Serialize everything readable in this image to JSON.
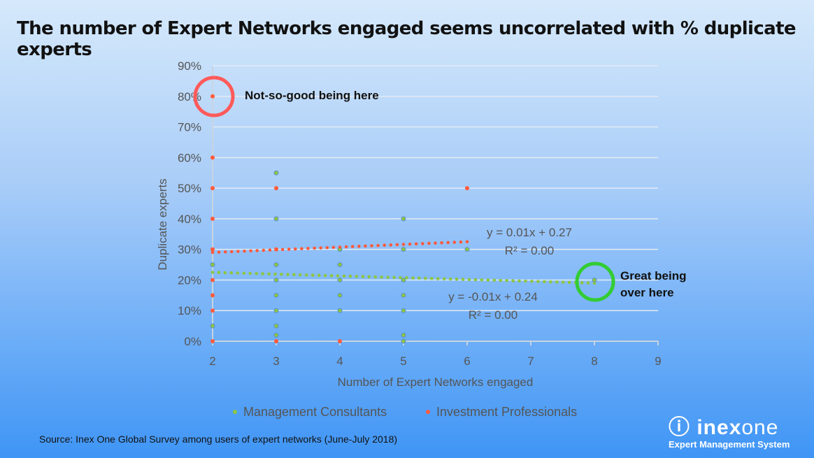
{
  "title": "The number of Expert Networks engaged seems uncorrelated with % duplicate experts",
  "source": "Source:  Inex One Global Survey among users of expert networks (June-July 2018)",
  "logo": {
    "brand_bold": "inex",
    "brand_light": "one",
    "tagline": "Expert Management System"
  },
  "chart_data": {
    "type": "scatter",
    "xlabel": "Number of Expert Networks engaged",
    "ylabel": "Duplicate experts",
    "xlim": [
      2,
      9
    ],
    "ylim": [
      0,
      0.9
    ],
    "xticks": [
      "2",
      "3",
      "4",
      "5",
      "6",
      "7",
      "8",
      "9"
    ],
    "yticks": [
      "0%",
      "10%",
      "20%",
      "30%",
      "40%",
      "50%",
      "60%",
      "70%",
      "80%",
      "90%"
    ],
    "grid": true,
    "legend": "bottom",
    "series": [
      {
        "name": "Management Consultants",
        "color": "#8dc63f",
        "points": [
          [
            2,
            0.25
          ],
          [
            2,
            0.05
          ],
          [
            3,
            0.55
          ],
          [
            3,
            0.4
          ],
          [
            3,
            0.25
          ],
          [
            3,
            0.2
          ],
          [
            3,
            0.15
          ],
          [
            3,
            0.1
          ],
          [
            3,
            0.05
          ],
          [
            3,
            0.02
          ],
          [
            4,
            0.3
          ],
          [
            4,
            0.25
          ],
          [
            4,
            0.2
          ],
          [
            4,
            0.15
          ],
          [
            4,
            0.1
          ],
          [
            5,
            0.4
          ],
          [
            5,
            0.3
          ],
          [
            5,
            0.2
          ],
          [
            5,
            0.15
          ],
          [
            5,
            0.1
          ],
          [
            5,
            0.02
          ],
          [
            5,
            0
          ],
          [
            6,
            0.3
          ],
          [
            8,
            0.2
          ]
        ],
        "trend": {
          "equation": "y = -0.01x + 0.24",
          "r2": "R² = 0.00",
          "from": [
            2,
            0.225
          ],
          "to": [
            8,
            0.19
          ]
        }
      },
      {
        "name": "Investment Professionals",
        "color": "#ff5a3c",
        "points": [
          [
            2,
            0.8
          ],
          [
            2,
            0.6
          ],
          [
            2,
            0.5
          ],
          [
            2,
            0.4
          ],
          [
            2,
            0.3
          ],
          [
            2,
            0.2
          ],
          [
            2,
            0.15
          ],
          [
            2,
            0.1
          ],
          [
            2,
            0
          ],
          [
            3,
            0.5
          ],
          [
            3,
            0.3
          ],
          [
            3,
            0
          ],
          [
            4,
            0
          ],
          [
            6,
            0.5
          ]
        ],
        "trend": {
          "equation": "y = 0.01x + 0.27",
          "r2": "R² = 0.00",
          "from": [
            2,
            0.29
          ],
          "to": [
            6,
            0.325
          ]
        }
      }
    ],
    "annotations": [
      {
        "text": "Not-so-good being here",
        "circle_color": "#ff5a5a"
      },
      {
        "text": "Great being",
        "text2": "over here",
        "circle_color": "#33cc33"
      }
    ]
  }
}
